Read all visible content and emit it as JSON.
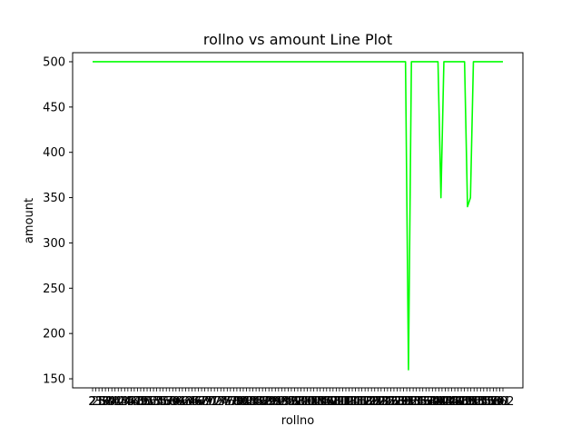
{
  "chart_data": {
    "type": "line",
    "title": "rollno vs amount Line Plot",
    "xlabel": "rollno",
    "ylabel": "amount",
    "ylim": [
      140,
      510
    ],
    "yticks": [
      150,
      200,
      250,
      300,
      350,
      400,
      450,
      500
    ],
    "grid": false,
    "line_color": "#00ff00",
    "x_tick_labels": [
      "2",
      "21",
      "25",
      "36",
      "38",
      "39",
      "40",
      "41",
      "42",
      "43",
      "44",
      "45",
      "46",
      "47",
      "48",
      "49",
      "50",
      "51",
      "52",
      "53",
      "54",
      "55",
      "56",
      "57",
      "58",
      "59",
      "60",
      "61",
      "62",
      "63",
      "64",
      "65",
      "66",
      "67",
      "68",
      "69",
      "70",
      "71",
      "72",
      "73",
      "74",
      "75",
      "76",
      "77",
      "78",
      "79",
      "80",
      "81",
      "82",
      "83",
      "84",
      "85",
      "86",
      "87",
      "88",
      "89",
      "90",
      "91",
      "92",
      "93",
      "94",
      "95",
      "96",
      "97",
      "98",
      "99",
      "100",
      "101",
      "102",
      "103",
      "104",
      "105",
      "106",
      "107",
      "108",
      "109",
      "110",
      "111",
      "112",
      "113",
      "114",
      "115",
      "116",
      "117",
      "118",
      "119",
      "120",
      "121",
      "122",
      "123",
      "124",
      "125",
      "126",
      "127",
      "128",
      "129",
      "130",
      "131",
      "132",
      "133",
      "134",
      "135",
      "136",
      "137",
      "138",
      "139",
      "140",
      "141",
      "142",
      "143",
      "144",
      "145",
      "146",
      "147",
      "148",
      "149",
      "150",
      "151",
      "152",
      "153",
      "154",
      "155",
      "156",
      "157",
      "158",
      "159",
      "160",
      "161",
      "162"
    ],
    "series": [
      {
        "values": [
          500,
          500,
          500,
          500,
          500,
          500,
          500,
          500,
          500,
          500,
          500,
          500,
          500,
          500,
          500,
          500,
          500,
          500,
          500,
          500,
          500,
          500,
          500,
          500,
          500,
          500,
          500,
          500,
          500,
          500,
          500,
          500,
          500,
          500,
          500,
          500,
          500,
          500,
          500,
          500,
          500,
          500,
          500,
          500,
          500,
          500,
          500,
          500,
          500,
          500,
          500,
          500,
          500,
          500,
          500,
          500,
          500,
          500,
          500,
          500,
          500,
          500,
          500,
          500,
          500,
          500,
          500,
          500,
          500,
          500,
          500,
          500,
          500,
          500,
          500,
          500,
          500,
          500,
          500,
          500,
          500,
          500,
          500,
          500,
          500,
          500,
          500,
          500,
          500,
          500,
          500,
          500,
          500,
          500,
          500,
          500,
          500,
          500,
          500,
          500,
          500,
          500,
          500,
          500,
          500,
          500,
          500,
          160,
          500,
          500,
          500,
          500,
          500,
          500,
          500,
          500,
          500,
          500,
          350,
          500,
          500,
          500,
          500,
          500,
          500,
          500,
          500,
          340,
          350,
          500,
          500,
          500,
          500,
          500,
          500,
          500,
          500,
          500,
          500,
          500
        ]
      }
    ]
  }
}
